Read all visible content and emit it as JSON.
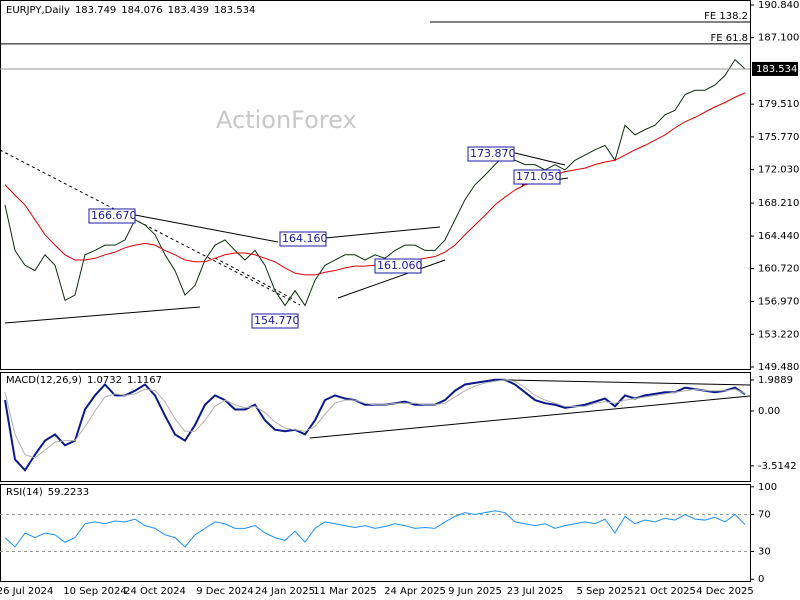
{
  "chart_data": [
    {
      "type": "line",
      "title": "EURJPY,Daily",
      "header_values": [
        183.749,
        184.076,
        183.439,
        183.534
      ],
      "watermark": "ActionForex",
      "ylim": [
        149.48,
        190.84
      ],
      "yticks": [
        {
          "value": 190.84,
          "label": "190.840"
        },
        {
          "value": 187.1,
          "label": "187.100"
        },
        {
          "value": 179.51,
          "label": "179.510"
        },
        {
          "value": 175.77,
          "label": "175.770"
        },
        {
          "value": 172.03,
          "label": "172.030"
        },
        {
          "value": 168.21,
          "label": "168.210"
        },
        {
          "value": 164.44,
          "label": "164.440"
        },
        {
          "value": 160.72,
          "label": "160.720"
        },
        {
          "value": 156.97,
          "label": "156.970"
        },
        {
          "value": 153.22,
          "label": "153.220"
        },
        {
          "value": 149.48,
          "label": "149.480"
        }
      ],
      "series": [
        {
          "color": "#0f2e0f",
          "values": [
            168.0,
            162.8,
            161.1,
            160.5,
            162.3,
            161.1,
            157.1,
            157.7,
            162.3,
            162.8,
            163.4,
            163.4,
            164.0,
            166.3,
            165.7,
            164.6,
            162.3,
            160.5,
            157.7,
            158.8,
            161.7,
            163.4,
            164.0,
            162.8,
            161.7,
            162.8,
            161.1,
            158.2,
            156.5,
            158.2,
            156.5,
            159.4,
            161.1,
            161.7,
            162.3,
            162.3,
            161.7,
            162.3,
            161.9,
            162.8,
            163.4,
            163.4,
            162.8,
            162.8,
            164.0,
            166.3,
            168.6,
            170.3,
            171.4,
            172.6,
            173.7,
            173.1,
            172.6,
            172.6,
            172.0,
            172.6,
            172.0,
            173.1,
            173.7,
            174.3,
            174.8,
            173.1,
            177.1,
            176.0,
            176.6,
            177.1,
            178.3,
            178.8,
            180.6,
            181.1,
            181.1,
            181.7,
            182.8,
            184.6,
            183.534
          ]
        },
        {
          "color": "#e00000",
          "values": [
            170.3,
            169.1,
            168.0,
            166.3,
            164.6,
            163.4,
            162.3,
            161.7,
            161.7,
            161.9,
            162.3,
            162.6,
            163.1,
            163.4,
            163.6,
            163.4,
            162.8,
            162.3,
            161.7,
            161.5,
            161.5,
            161.9,
            162.3,
            162.5,
            162.5,
            162.3,
            161.9,
            161.5,
            160.8,
            160.2,
            160.0,
            160.0,
            160.3,
            160.5,
            160.8,
            161.0,
            161.0,
            161.1,
            161.2,
            161.5,
            161.5,
            161.7,
            161.9,
            162.1,
            162.6,
            163.4,
            164.6,
            165.7,
            166.8,
            168.0,
            168.9,
            169.7,
            170.3,
            170.6,
            171.1,
            171.4,
            171.8,
            172.0,
            172.2,
            172.6,
            172.9,
            173.1,
            173.7,
            174.3,
            174.8,
            175.4,
            176.0,
            176.8,
            177.5,
            178.0,
            178.6,
            179.2,
            179.7,
            180.3,
            180.8
          ]
        }
      ],
      "annotations": [
        {
          "value": 166.67,
          "label": "166.670"
        },
        {
          "value": 164.16,
          "label": "164.160"
        },
        {
          "value": 154.77,
          "label": "154.770"
        },
        {
          "value": 161.06,
          "label": "161.060"
        },
        {
          "value": 173.87,
          "label": "173.870"
        },
        {
          "value": 171.05,
          "label": "171.050"
        }
      ],
      "fe_levels": [
        {
          "value": 188.9,
          "label": "FE 138.2"
        },
        {
          "value": 186.4,
          "label": "FE 61.8"
        }
      ]
    },
    {
      "type": "line",
      "title": "MACD(12,26,9)",
      "header_values": [
        1.0732,
        1.1167
      ],
      "ylim": [
        -4.55,
        2.5
      ],
      "yticks": [
        1.9889,
        {
          "value": 0,
          "label": "0.00"
        },
        -3.5142
      ],
      "series": [
        {
          "color": "#0a1a8a",
          "values": [
            0.7,
            -3.1,
            -3.8,
            -2.8,
            -1.9,
            -1.5,
            -2.2,
            -1.9,
            0.1,
            1.0,
            1.7,
            1.0,
            1.0,
            1.3,
            1.7,
            1.0,
            -0.3,
            -1.5,
            -1.9,
            -0.9,
            0.4,
            1.0,
            0.7,
            0.1,
            0.1,
            0.4,
            -0.6,
            -1.2,
            -1.3,
            -1.2,
            -1.5,
            -0.6,
            0.7,
            1.0,
            0.8,
            0.7,
            0.4,
            0.4,
            0.4,
            0.5,
            0.6,
            0.4,
            0.4,
            0.4,
            0.7,
            1.3,
            1.7,
            1.8,
            1.9,
            2.0,
            2.0,
            1.7,
            1.2,
            0.7,
            0.5,
            0.4,
            0.2,
            0.3,
            0.4,
            0.6,
            0.8,
            0.3,
            1.0,
            0.8,
            1.0,
            1.1,
            1.2,
            1.2,
            1.5,
            1.4,
            1.3,
            1.2,
            1.3,
            1.5,
            1.0732
          ]
        },
        {
          "color": "#b0b0b0",
          "values": [
            1.2,
            -1.5,
            -2.8,
            -3.0,
            -2.5,
            -2.0,
            -1.9,
            -1.9,
            -1.0,
            0.0,
            0.9,
            1.1,
            1.0,
            1.1,
            1.4,
            1.3,
            0.6,
            -0.5,
            -1.3,
            -1.3,
            -0.6,
            0.3,
            0.7,
            0.4,
            0.2,
            0.3,
            -0.1,
            -0.7,
            -1.1,
            -1.2,
            -1.3,
            -1.0,
            -0.2,
            0.5,
            0.7,
            0.7,
            0.5,
            0.4,
            0.4,
            0.5,
            0.5,
            0.5,
            0.4,
            0.4,
            0.5,
            0.9,
            1.3,
            1.6,
            1.8,
            1.9,
            2.0,
            1.9,
            1.5,
            1.0,
            0.7,
            0.5,
            0.3,
            0.3,
            0.3,
            0.5,
            0.6,
            0.5,
            0.7,
            0.8,
            0.9,
            1.0,
            1.1,
            1.2,
            1.3,
            1.4,
            1.3,
            1.3,
            1.3,
            1.4,
            1.1167
          ]
        }
      ]
    },
    {
      "type": "line",
      "title": "RSI(14)",
      "header_values": [
        59.2233
      ],
      "ylim": [
        -3,
        103
      ],
      "yticks": [
        100,
        70,
        30,
        0
      ],
      "dashed_levels": [
        70,
        30
      ],
      "categories": [
        null,
        null,
        "26 Jul 2024",
        null,
        null,
        null,
        null,
        null,
        null,
        "10 Sep 2024",
        null,
        null,
        null,
        null,
        null,
        "24 Oct 2024",
        null,
        null,
        null,
        null,
        null,
        null,
        "9 Dec 2024",
        null,
        null,
        null,
        null,
        null,
        "24 Jan 2025",
        null,
        null,
        null,
        null,
        null,
        "11 Mar 2025",
        null,
        null,
        null,
        null,
        null,
        null,
        "24 Apr 2025",
        null,
        null,
        null,
        null,
        null,
        "9 Jun 2025",
        null,
        null,
        null,
        null,
        null,
        "23 Jul 2025",
        null,
        null,
        null,
        null,
        null,
        null,
        "5 Sep 2025",
        null,
        null,
        null,
        null,
        null,
        "21 Oct 2025",
        null,
        null,
        null,
        null,
        null,
        "4 Dec 2025",
        null,
        null
      ],
      "series": [
        {
          "color": "#1e90ff",
          "values": [
            45,
            35,
            50,
            45,
            50,
            48,
            40,
            45,
            60,
            62,
            60,
            63,
            62,
            65,
            58,
            55,
            48,
            45,
            35,
            48,
            55,
            62,
            60,
            55,
            55,
            58,
            50,
            45,
            42,
            52,
            40,
            55,
            62,
            60,
            58,
            56,
            58,
            55,
            57,
            60,
            58,
            55,
            56,
            55,
            62,
            68,
            72,
            70,
            72,
            74,
            72,
            62,
            60,
            58,
            60,
            55,
            58,
            60,
            62,
            60,
            65,
            50,
            68,
            60,
            64,
            62,
            66,
            64,
            70,
            65,
            64,
            67,
            62,
            70,
            59.2233
          ]
        }
      ]
    }
  ]
}
